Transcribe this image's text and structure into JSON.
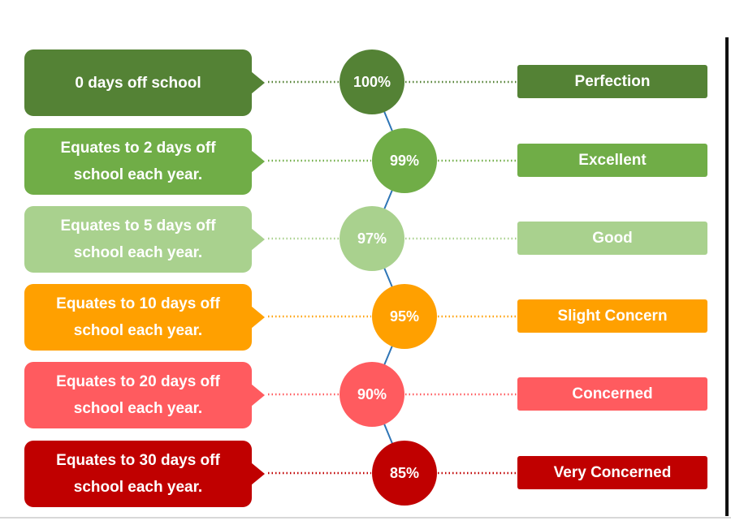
{
  "levels": [
    {
      "description": "0 days off school",
      "percent": "100%",
      "rating": "Perfection",
      "color": "#548235"
    },
    {
      "description": "Equates to 2 days off school each year.",
      "percent": "99%",
      "rating": "Excellent",
      "color": "#70ad47"
    },
    {
      "description": "Equates to 5 days off school each year.",
      "percent": "97%",
      "rating": "Good",
      "color": "#a9d18e"
    },
    {
      "description": "Equates to 10 days off school each year.",
      "percent": "95%",
      "rating": "Slight Concern",
      "color": "#ffa000"
    },
    {
      "description": "Equates to 20 days off school each year.",
      "percent": "90%",
      "rating": "Concerned",
      "color": "#ff5b5f"
    },
    {
      "description": "Equates to 30 days off school each year.",
      "percent": "85%",
      "rating": "Very Concerned",
      "color": "#c00000"
    }
  ],
  "colors": {
    "connector": "#2e75b6"
  }
}
